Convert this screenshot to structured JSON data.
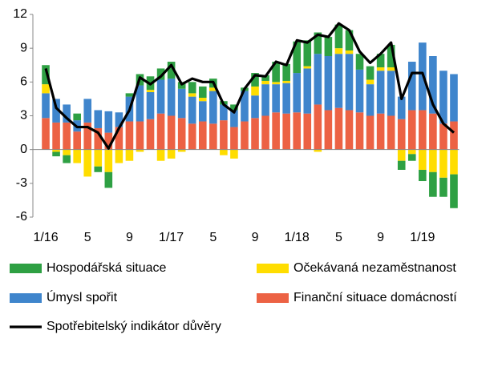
{
  "chart_data": {
    "type": "bar",
    "categories": [
      "1/16",
      null,
      null,
      null,
      "5",
      null,
      null,
      null,
      "9",
      null,
      null,
      null,
      "1/17",
      null,
      null,
      null,
      "5",
      null,
      null,
      null,
      "9",
      null,
      null,
      null,
      "1/18",
      null,
      null,
      null,
      "5",
      null,
      null,
      null,
      "9",
      null,
      null,
      null,
      "1/19",
      null,
      null,
      null
    ],
    "ylim": [
      -6,
      12
    ],
    "yticks": [
      -6,
      -3,
      0,
      3,
      6,
      9,
      12
    ],
    "series": [
      {
        "name": "Hospodářská situace",
        "color": "#2ea043",
        "values": [
          1.7,
          -0.4,
          -0.7,
          0.6,
          0,
          -0.5,
          -1.4,
          0,
          0.3,
          1.0,
          1.2,
          1.0,
          1.5,
          0.6,
          1.0,
          1.0,
          0.8,
          0.3,
          0.5,
          0.3,
          1.2,
          0.5,
          1.8,
          1.5,
          2.8,
          2.3,
          1.9,
          1.7,
          2.1,
          1.8,
          1.4,
          1.2,
          1.2,
          2.0,
          -0.8,
          -0.6,
          -1.0,
          -2.2,
          -1.7,
          -3.0
        ]
      },
      {
        "name": "Očekávaná nezaměstnanost",
        "color": "#ffdd00",
        "values": [
          0.8,
          -0.2,
          -0.5,
          -1.2,
          -2.4,
          -1.5,
          -2.0,
          -1.2,
          -1.0,
          -0.2,
          0.2,
          -1.0,
          -0.8,
          -0.2,
          0.3,
          0.3,
          0.3,
          -0.5,
          -0.8,
          0,
          0.8,
          0.3,
          0.2,
          0.2,
          0,
          0.2,
          -0.2,
          0,
          0.5,
          0.3,
          0,
          0.4,
          0.3,
          0.3,
          -1.0,
          -0.4,
          -1.8,
          -2.0,
          -2.5,
          -2.2
        ]
      },
      {
        "name": "Úmysl spořit",
        "color": "#3f85cc",
        "values": [
          2.2,
          2.1,
          1.6,
          1.0,
          2.1,
          1.6,
          1.9,
          1.3,
          2.2,
          3.2,
          2.4,
          3.0,
          3.3,
          2.6,
          2.4,
          1.8,
          2.9,
          1.4,
          1.5,
          2.7,
          2.0,
          2.8,
          2.5,
          2.7,
          3.5,
          4.0,
          4.5,
          4.8,
          4.8,
          5.0,
          3.8,
          2.8,
          3.8,
          4.0,
          2.0,
          4.3,
          6.0,
          5.1,
          4.7,
          4.2
        ]
      },
      {
        "name": "Finanční situace domácností",
        "color": "#ec6244",
        "values": [
          2.8,
          2.4,
          2.4,
          1.6,
          2.4,
          1.9,
          1.5,
          2.0,
          2.5,
          2.5,
          2.7,
          3.2,
          3.0,
          2.8,
          2.3,
          2.5,
          2.3,
          2.6,
          2.0,
          2.5,
          2.8,
          3.0,
          3.3,
          3.2,
          3.3,
          3.2,
          4.0,
          3.5,
          3.7,
          3.5,
          3.3,
          3.0,
          3.2,
          3.0,
          2.7,
          3.5,
          3.5,
          3.2,
          2.3,
          2.5
        ]
      },
      {
        "name": "Spotřebitelský indikátor důvěry",
        "type": "line",
        "color": "#000000",
        "values": [
          7.2,
          3.7,
          2.8,
          2.0,
          2.0,
          1.5,
          0.1,
          1.9,
          3.5,
          6.4,
          5.8,
          6.5,
          7.5,
          5.8,
          6.3,
          6.0,
          6.0,
          4.0,
          3.3,
          5.4,
          6.6,
          6.5,
          7.8,
          7.5,
          9.7,
          9.5,
          10.2,
          10.0,
          11.2,
          10.6,
          8.7,
          7.7,
          8.5,
          9.5,
          4.5,
          6.8,
          6.8,
          4.0,
          2.3,
          1.5
        ]
      }
    ]
  }
}
